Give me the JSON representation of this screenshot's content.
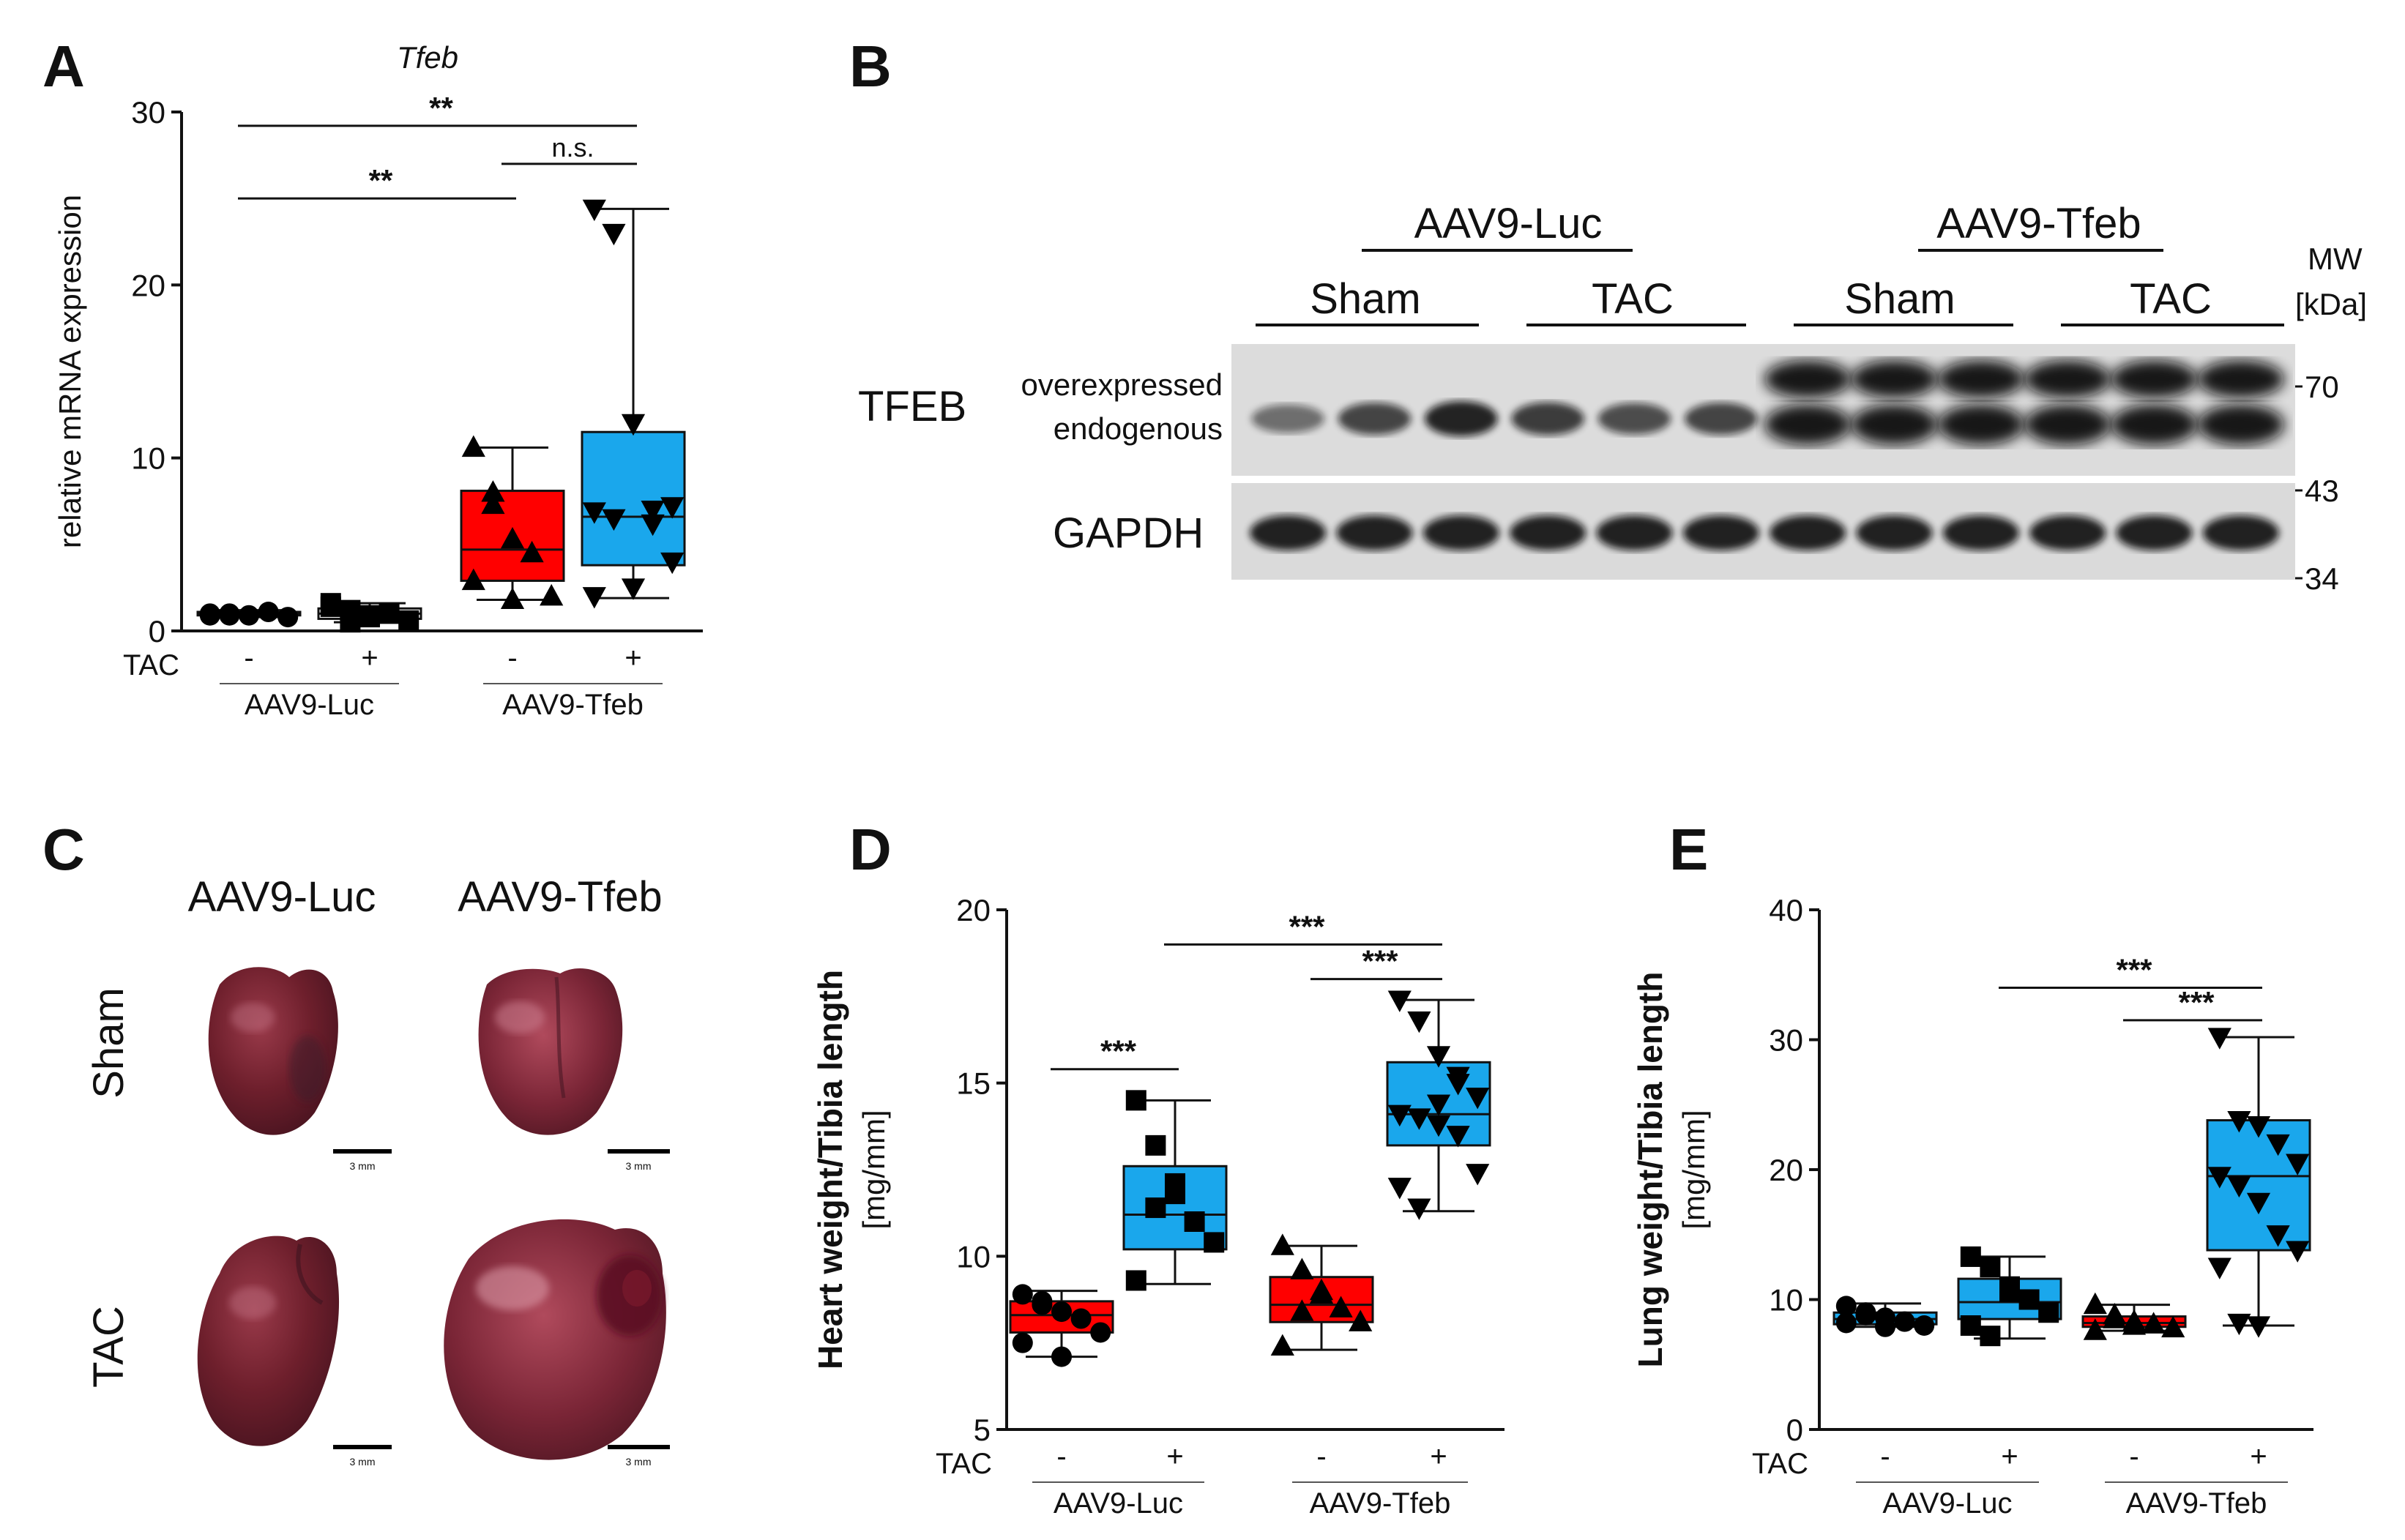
{
  "panels": {
    "a": "A",
    "b": "B",
    "c": "C",
    "d": "D",
    "e": "E"
  },
  "common": {
    "tac_label": "TAC",
    "minus": "-",
    "plus": "+",
    "group_luc": "AAV9-Luc",
    "group_tfeb": "AAV9-Tfeb"
  },
  "colors": {
    "red": "#ff0000",
    "blue": "#1aa7ec",
    "black": "#000000"
  },
  "chart_data": [
    {
      "id": "A",
      "type": "boxplot",
      "title": "Tfeb",
      "ylabel": "relative mRNA expression",
      "ylim": [
        0,
        30
      ],
      "yticks": [
        0,
        10,
        20,
        30
      ],
      "categories": [
        "AAV9-Luc Sham",
        "AAV9-Luc TAC",
        "AAV9-Tfeb Sham",
        "AAV9-Tfeb TAC"
      ],
      "boxes": [
        {
          "min": 0.8,
          "q1": 0.9,
          "median": 1.0,
          "q3": 1.1,
          "max": 1.2,
          "color": "#ffffff",
          "marker": "circle",
          "points": [
            0.9,
            1.0,
            0.9,
            1.1,
            0.8,
            1.0,
            0.9
          ]
        },
        {
          "min": 0.5,
          "q1": 0.7,
          "median": 1.0,
          "q3": 1.3,
          "max": 1.6,
          "color": "#ffffff",
          "marker": "square",
          "points": [
            1.6,
            1.2,
            0.8,
            1.0,
            0.6,
            1.4,
            0.5,
            0.9
          ]
        },
        {
          "min": 1.8,
          "q1": 2.9,
          "median": 4.7,
          "q3": 8.1,
          "max": 10.6,
          "color": "#ff0000",
          "marker": "triangle-up",
          "points": [
            10.6,
            8.0,
            5.3,
            4.5,
            2.0,
            2.9,
            7.3,
            1.8
          ]
        },
        {
          "min": 1.9,
          "q1": 3.8,
          "median": 6.6,
          "q3": 11.5,
          "max": 24.4,
          "color": "#1aa7ec",
          "marker": "triangle-down",
          "points": [
            24.4,
            23.0,
            12.0,
            7.0,
            7.2,
            6.9,
            6.5,
            2.5,
            6.2,
            4.0,
            2.0
          ]
        }
      ],
      "significance": [
        {
          "from": 0,
          "to": 2,
          "label": "**",
          "y": 25.0
        },
        {
          "from": 0,
          "to": 3,
          "label": "**",
          "y": 29.2
        },
        {
          "from": 2,
          "to": 3,
          "label": "n.s.",
          "y": 27.0
        }
      ]
    },
    {
      "id": "D",
      "type": "boxplot",
      "ylabel": "Heart weight/Tibia length",
      "yunit": "[mg/mm]",
      "ylim": [
        5,
        20
      ],
      "yticks": [
        5,
        10,
        15,
        20
      ],
      "categories": [
        "AAV9-Luc Sham",
        "AAV9-Luc TAC",
        "AAV9-Tfeb Sham",
        "AAV9-Tfeb TAC"
      ],
      "boxes": [
        {
          "min": 7.1,
          "q1": 7.8,
          "median": 8.3,
          "q3": 8.7,
          "max": 9.0,
          "color": "#ff0000",
          "marker": "circle",
          "points": [
            8.9,
            8.6,
            8.4,
            8.2,
            7.8,
            7.5,
            8.7,
            7.1
          ]
        },
        {
          "min": 9.2,
          "q1": 10.2,
          "median": 11.2,
          "q3": 12.6,
          "max": 14.5,
          "color": "#1aa7ec",
          "marker": "square",
          "points": [
            14.5,
            13.2,
            11.8,
            11.0,
            10.4,
            9.3,
            11.4,
            12.1
          ]
        },
        {
          "min": 7.3,
          "q1": 8.1,
          "median": 8.6,
          "q3": 9.4,
          "max": 10.3,
          "color": "#ff0000",
          "marker": "triangle-up",
          "points": [
            10.3,
            9.6,
            8.9,
            8.5,
            8.1,
            7.4,
            8.4,
            9.0
          ]
        },
        {
          "min": 11.3,
          "q1": 13.2,
          "median": 14.1,
          "q3": 15.6,
          "max": 17.4,
          "color": "#1aa7ec",
          "marker": "triangle-down",
          "points": [
            17.4,
            16.8,
            15.8,
            15.2,
            14.6,
            14.1,
            14.0,
            13.8,
            13.5,
            12.4,
            12.0,
            11.4,
            14.4,
            15.0
          ]
        }
      ],
      "significance": [
        {
          "from": 0,
          "to": 1,
          "label": "***",
          "y": 15.4
        },
        {
          "from": 1,
          "to": 3,
          "label": "***",
          "y": 19.0
        },
        {
          "from": 2,
          "to": 3,
          "label": "***",
          "y": 18.0
        }
      ]
    },
    {
      "id": "E",
      "type": "boxplot",
      "ylabel": "Lung weight/Tibia length",
      "yunit": "[mg/mm]",
      "ylim": [
        0,
        40
      ],
      "yticks": [
        0,
        10,
        20,
        30,
        40
      ],
      "categories": [
        "AAV9-Luc Sham",
        "AAV9-Luc TAC",
        "AAV9-Tfeb Sham",
        "AAV9-Tfeb TAC"
      ],
      "boxes": [
        {
          "min": 7.9,
          "q1": 8.1,
          "median": 8.5,
          "q3": 9.0,
          "max": 9.7,
          "color": "#1aa7ec",
          "marker": "circle",
          "points": [
            9.5,
            9.0,
            8.6,
            8.3,
            8.0,
            8.2,
            8.8,
            7.9
          ]
        },
        {
          "min": 7.0,
          "q1": 8.5,
          "median": 9.8,
          "q3": 11.6,
          "max": 13.3,
          "color": "#1aa7ec",
          "marker": "square",
          "points": [
            13.3,
            12.5,
            11.0,
            10.0,
            9.0,
            8.0,
            7.2,
            10.6
          ]
        },
        {
          "min": 7.6,
          "q1": 7.9,
          "median": 8.2,
          "q3": 8.7,
          "max": 9.6,
          "color": "#ff0000",
          "marker": "triangle-up",
          "points": [
            9.6,
            8.8,
            8.3,
            8.1,
            7.8,
            7.6,
            8.5,
            8.0
          ]
        },
        {
          "min": 8.0,
          "q1": 13.8,
          "median": 19.5,
          "q3": 23.8,
          "max": 30.2,
          "color": "#1aa7ec",
          "marker": "triangle-down",
          "points": [
            30.2,
            23.8,
            23.4,
            22.0,
            20.5,
            19.5,
            18.8,
            17.5,
            15.0,
            13.8,
            12.5,
            8.2,
            8.0
          ]
        }
      ],
      "significance": [
        {
          "from": 1,
          "to": 3,
          "label": "***",
          "y": 34.0
        },
        {
          "from": 2,
          "to": 3,
          "label": "***",
          "y": 31.5
        }
      ]
    }
  ],
  "western_blot": {
    "group_luc": "AAV9-Luc",
    "group_tfeb": "AAV9-Tfeb",
    "conditions": [
      "Sham",
      "TAC",
      "Sham",
      "TAC"
    ],
    "mw_title": "MW",
    "mw_unit": "[kDa]",
    "mw_markers": [
      "70",
      "43",
      "34"
    ],
    "protein_tfeb": "TFEB",
    "label_overexpressed": "overexpressed",
    "label_endogenous": "endogenous",
    "protein_gapdh": "GAPDH",
    "tfeb_lane_intensity": [
      0.35,
      0.6,
      0.8,
      0.65,
      0.55,
      0.6,
      1.0,
      1.0,
      1.0,
      1.0,
      1.0,
      1.0
    ],
    "lanes": 12
  },
  "hearts": {
    "col_luc": "AAV9-Luc",
    "col_tfeb": "AAV9-Tfeb",
    "row_sham": "Sham",
    "row_tac": "TAC",
    "scale_bar": "3 mm"
  }
}
